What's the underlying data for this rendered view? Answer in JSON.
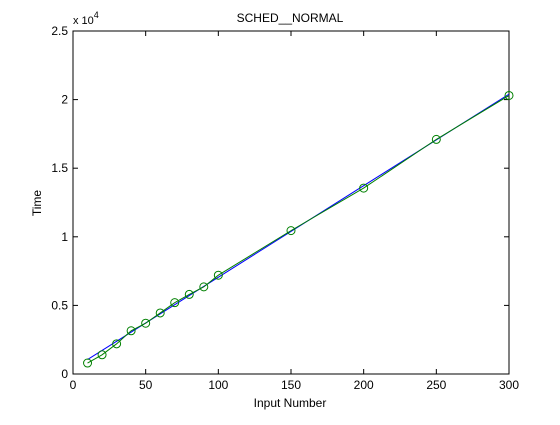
{
  "chart_data": {
    "type": "line",
    "title": "SCHED__NORMAL",
    "xlabel": "Input Number",
    "ylabel": "Time",
    "y_multiplier_base": "x 10",
    "y_multiplier_exp": "4",
    "xlim": [
      0,
      300
    ],
    "ylim": [
      0,
      25000
    ],
    "xticks": [
      0,
      50,
      100,
      150,
      200,
      250,
      300
    ],
    "yticks": [
      0,
      5000,
      10000,
      15000,
      20000,
      25000
    ],
    "xtick_labels": [
      "0",
      "50",
      "100",
      "150",
      "200",
      "250",
      "300"
    ],
    "ytick_labels": [
      "0",
      "0.5",
      "1",
      "1.5",
      "2",
      "2.5"
    ],
    "grid": false,
    "series": [
      {
        "type": "line+markers",
        "marker": "circle",
        "color": "#008000",
        "x": [
          10,
          20,
          30,
          40,
          50,
          60,
          70,
          80,
          90,
          100,
          150,
          200,
          250,
          300
        ],
        "y": [
          800,
          1400,
          2200,
          3150,
          3700,
          4450,
          5200,
          5800,
          6350,
          7200,
          10450,
          13550,
          17100,
          20300
        ]
      },
      {
        "type": "fit-line",
        "color": "#0000ff",
        "x": [
          10,
          300
        ],
        "y": [
          1050,
          20400
        ]
      }
    ]
  }
}
